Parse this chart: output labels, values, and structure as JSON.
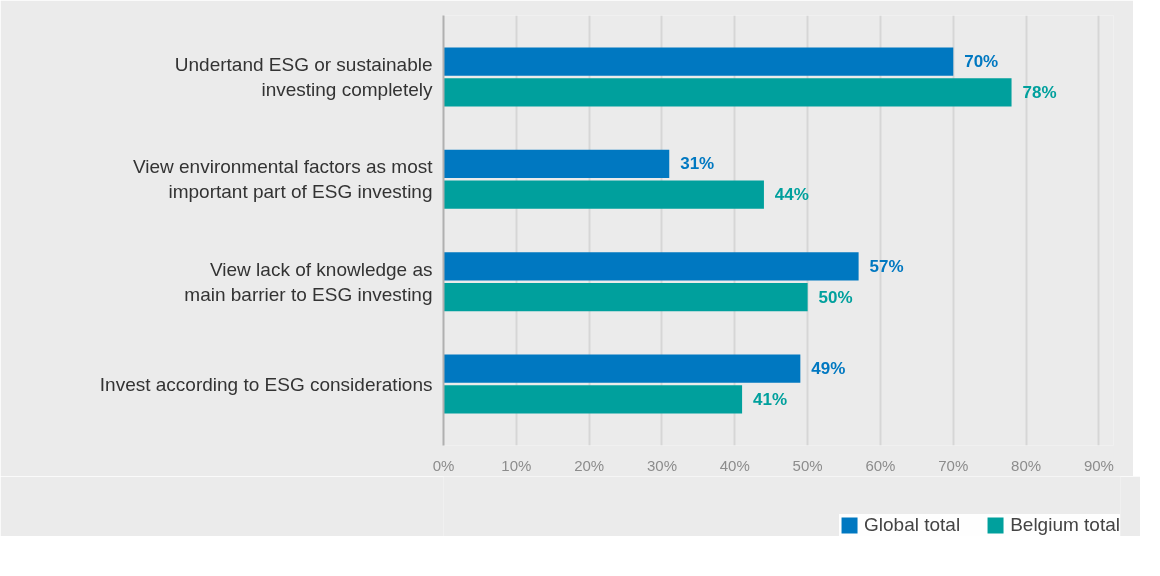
{
  "chart_data": {
    "type": "bar",
    "orientation": "horizontal",
    "categories": [
      "Undertand ESG or sustainable investing completely",
      "View environmental factors as most important part of ESG investing",
      "View lack of knowledge as main barrier to ESG investing",
      "Invest according to ESG considerations"
    ],
    "series": [
      {
        "name": "Global total",
        "color": "#0078c1",
        "values": [
          70,
          31,
          57,
          49
        ],
        "value_labels": [
          "70%",
          "31%",
          "57%",
          "49%"
        ]
      },
      {
        "name": "Belgium total",
        "color": "#00a09d",
        "values": [
          78,
          44,
          50,
          41
        ],
        "value_labels": [
          "78%",
          "44%",
          "50%",
          "41%"
        ]
      }
    ],
    "xlim": [
      0,
      92
    ],
    "xticks": [
      {
        "value": 0,
        "label": "0%"
      },
      {
        "value": 10,
        "label": "10%"
      },
      {
        "value": 20,
        "label": "20%"
      },
      {
        "value": 30,
        "label": "30%"
      },
      {
        "value": 40,
        "label": "40%"
      },
      {
        "value": 50,
        "label": "50%"
      },
      {
        "value": 60,
        "label": "60%"
      },
      {
        "value": 70,
        "label": "70%"
      },
      {
        "value": 80,
        "label": "80%"
      },
      {
        "value": 90,
        "label": "90%"
      }
    ],
    "grid": "x",
    "legend": "bottom right"
  }
}
